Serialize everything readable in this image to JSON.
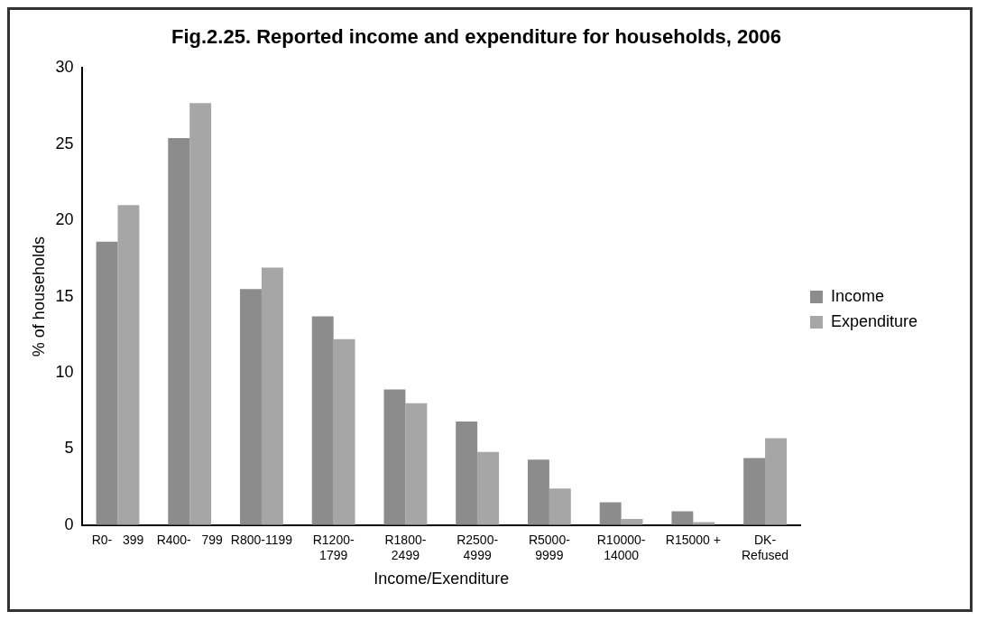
{
  "chart_data": {
    "type": "bar",
    "title": "Fig.2.25. Reported income and expenditure for households, 2006",
    "xlabel": "Income/Exenditure",
    "ylabel": "% of households",
    "categories": [
      "R0-   399",
      "R400-   799",
      "R800-1199",
      "R1200-\n1799",
      "R1800-\n2499",
      "R2500-\n4999",
      "R5000-\n9999",
      "R10000-\n14000",
      "R15000 +",
      "DK-\nRefused"
    ],
    "series": [
      {
        "name": "Income",
        "color": "#8c8c8c",
        "values": [
          18.6,
          25.4,
          15.5,
          13.7,
          8.9,
          6.8,
          4.3,
          1.5,
          0.9,
          4.4
        ]
      },
      {
        "name": "Expenditure",
        "color": "#a6a6a6",
        "values": [
          21.0,
          27.7,
          16.9,
          12.2,
          8.0,
          4.8,
          2.4,
          0.4,
          0.2,
          5.7
        ]
      }
    ],
    "ylim": [
      0,
      30
    ],
    "yticks": [
      0,
      5,
      10,
      15,
      20,
      25,
      30
    ],
    "grid": false,
    "legend": "right"
  }
}
